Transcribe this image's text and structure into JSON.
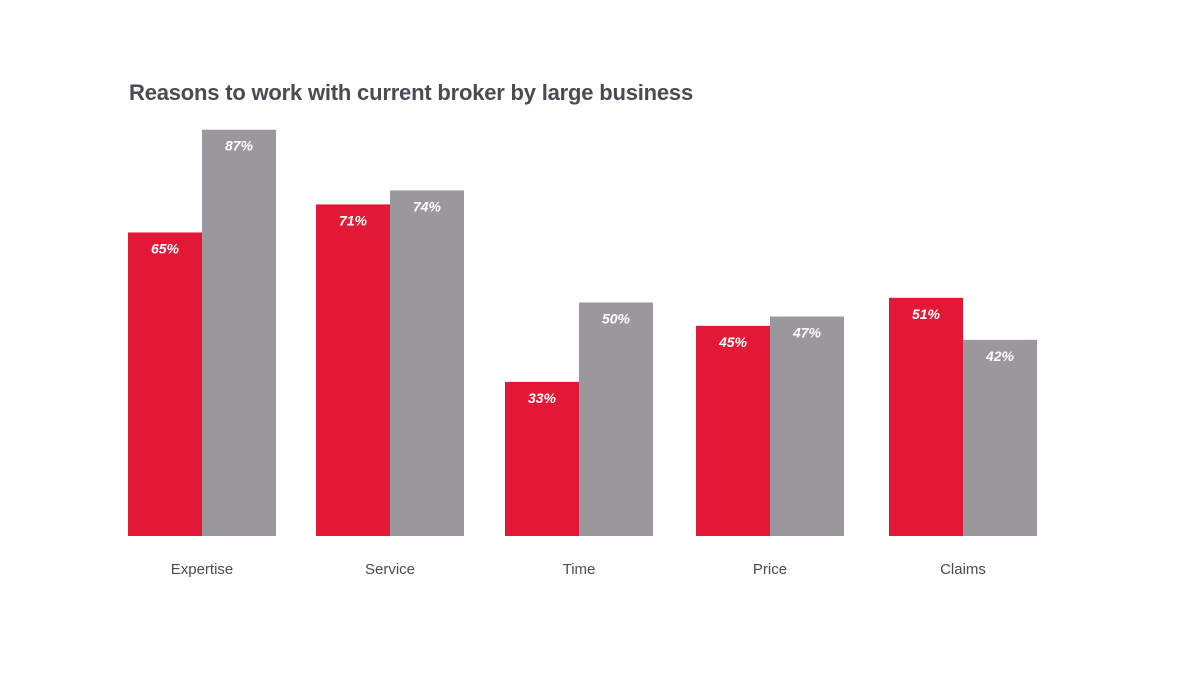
{
  "colors": {
    "series1": "#e31837",
    "series2": "#9a989d",
    "text": "#4a4a52"
  },
  "chart_data": {
    "type": "bar",
    "title": "Reasons to work with current broker by large business",
    "categories": [
      "Expertise",
      "Service",
      "Time",
      "Price",
      "Claims"
    ],
    "series": [
      {
        "values": [
          65,
          71,
          33,
          45,
          51
        ],
        "labels": [
          "65%",
          "71%",
          "33%",
          "45%",
          "51%"
        ],
        "color": "#e31837"
      },
      {
        "values": [
          87,
          74,
          50,
          47,
          42
        ],
        "labels": [
          "87%",
          "74%",
          "50%",
          "47%",
          "42%"
        ],
        "color": "#9a989d"
      }
    ],
    "ylim": [
      0,
      100
    ],
    "grid": false,
    "legend": "none"
  }
}
